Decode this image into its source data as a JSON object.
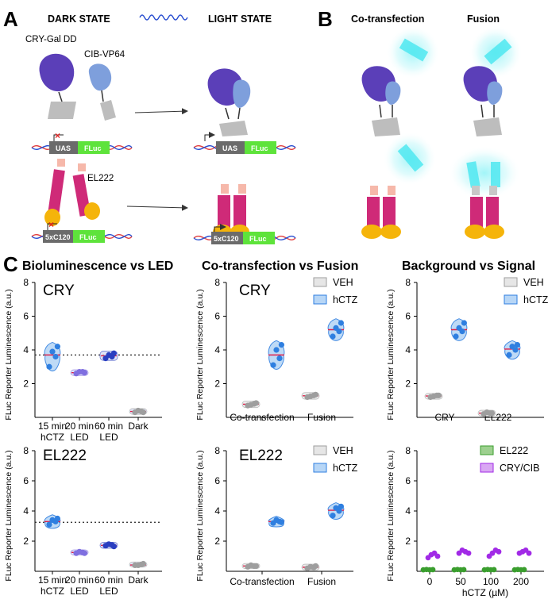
{
  "panels": {
    "a": "A",
    "b": "B",
    "c": "C"
  },
  "panel_a": {
    "dark_state": "DARK STATE",
    "light_state": "LIGHT STATE",
    "cry_label": "CRY-Gal DD",
    "cib_label": "CIB-VP64",
    "el222_label": "EL222",
    "uas": "UAS",
    "fluc": "FLuc",
    "c120": "5xC120"
  },
  "panel_b": {
    "cotransfection": "Co-transfection",
    "fusion": "Fusion"
  },
  "panel_c": {
    "col1_title": "Bioluminescence vs LED",
    "col2_title": "Co-transfection  vs Fusion",
    "col3_title": "Background vs Signal"
  },
  "colors": {
    "cry_dark": "#5b3fb8",
    "cib": "#7e9fdc",
    "el222": "#cf2a78",
    "el222_head": "#f6b8aa",
    "yellow": "#f5b40a",
    "gray": "#bdbdbd",
    "uas_box": "#6b6b6b",
    "fluc_box": "#5ee33b",
    "light": "#4fe8f0",
    "veh": "#9e9e9e",
    "hctz": "#2f7fe0",
    "median": "#e0204a",
    "el222_green": "#3a9e2e",
    "cry_purple": "#a12ae6"
  },
  "chart_data": [
    {
      "type": "violin-dot",
      "title": "CRY",
      "ylabel": "FLuc Reporter Luminescence (a.u.)",
      "ylim": [
        0,
        8
      ],
      "yticks": [
        2,
        4,
        6,
        8
      ],
      "categories": [
        [
          "15 min",
          "hCTZ"
        ],
        [
          "20 min",
          "LED"
        ],
        [
          "60 min",
          "LED"
        ],
        [
          "Dark",
          ""
        ]
      ],
      "groups": [
        {
          "points": [
            3.0,
            3.6,
            3.9,
            4.2
          ],
          "median": 3.7,
          "violin": true,
          "color": "#2f7fe0"
        },
        {
          "points": [
            2.6,
            2.7,
            2.7,
            2.65
          ],
          "median": 2.65,
          "violin": false,
          "color": "#7f6fe0"
        },
        {
          "points": [
            3.5,
            3.6,
            3.7,
            3.8
          ],
          "median": 3.65,
          "violin": false,
          "color": "#2a3fc0"
        },
        {
          "points": [
            0.3,
            0.35,
            0.4,
            0.3
          ],
          "median": 0.35,
          "violin": false,
          "color": "#9e9e9e"
        }
      ],
      "reference_line": 3.7
    },
    {
      "type": "violin-dot",
      "title": "EL222",
      "ylabel": "FLuc Reporter Luminescence (a.u.)",
      "ylim": [
        0,
        8
      ],
      "yticks": [
        2,
        4,
        6,
        8
      ],
      "categories": [
        [
          "15 min",
          "hCTZ"
        ],
        [
          "20 min",
          "LED"
        ],
        [
          "60 min",
          "LED"
        ],
        [
          "Dark",
          ""
        ]
      ],
      "groups": [
        {
          "points": [
            3.1,
            3.3,
            3.4,
            3.5
          ],
          "median": 3.3,
          "violin": true,
          "color": "#2f7fe0"
        },
        {
          "points": [
            1.2,
            1.25,
            1.3,
            1.2
          ],
          "median": 1.25,
          "violin": false,
          "color": "#7f6fe0"
        },
        {
          "points": [
            1.7,
            1.75,
            1.8,
            1.65
          ],
          "median": 1.72,
          "violin": false,
          "color": "#2a3fc0"
        },
        {
          "points": [
            0.4,
            0.45,
            0.4,
            0.5
          ],
          "median": 0.42,
          "violin": false,
          "color": "#9e9e9e"
        }
      ],
      "reference_line": 3.25
    },
    {
      "type": "violin-dot",
      "title": "CRY",
      "ylabel": "FLuc Reporter Luminescence (a.u.)",
      "ylim": [
        0,
        8
      ],
      "yticks": [
        2,
        4,
        6,
        8
      ],
      "legend": [
        "VEH",
        "hCTZ"
      ],
      "categories": [
        "Co-transfection",
        "Fusion"
      ],
      "groups": [
        {
          "series": "VEH",
          "cat": 0,
          "points": [
            0.7,
            0.8,
            0.75,
            0.85
          ],
          "median": 0.78
        },
        {
          "series": "hCTZ",
          "cat": 0,
          "points": [
            3.1,
            3.5,
            4.0,
            4.3
          ],
          "median": 3.7
        },
        {
          "series": "VEH",
          "cat": 1,
          "points": [
            1.2,
            1.3,
            1.25,
            1.35
          ],
          "median": 1.28
        },
        {
          "series": "hCTZ",
          "cat": 1,
          "points": [
            4.8,
            5.1,
            5.3,
            5.6
          ],
          "median": 5.2
        }
      ]
    },
    {
      "type": "violin-dot",
      "title": "EL222",
      "ylabel": "FLuc Reporter Luminescence (a.u.)",
      "ylim": [
        0,
        8
      ],
      "yticks": [
        2,
        4,
        6,
        8
      ],
      "legend": [
        "VEH",
        "hCTZ"
      ],
      "categories": [
        "Co-transfection",
        "Fusion"
      ],
      "groups": [
        {
          "series": "VEH",
          "cat": 0,
          "points": [
            0.3,
            0.35,
            0.4,
            0.35
          ],
          "median": 0.35
        },
        {
          "series": "hCTZ",
          "cat": 0,
          "points": [
            3.2,
            3.3,
            3.4,
            3.25
          ],
          "median": 3.3
        },
        {
          "series": "VEH",
          "cat": 1,
          "points": [
            0.2,
            0.25,
            0.3,
            0.35
          ],
          "median": 0.27
        },
        {
          "series": "hCTZ",
          "cat": 1,
          "points": [
            3.7,
            4.0,
            4.2,
            4.3
          ],
          "median": 4.05
        }
      ]
    },
    {
      "type": "violin-dot",
      "title": "",
      "ylabel": "FLuc Reporter Luminescence (a.u.)",
      "ylim": [
        0,
        8
      ],
      "yticks": [
        2,
        4,
        6,
        8
      ],
      "legend": [
        "VEH",
        "hCTZ"
      ],
      "categories": [
        "CRY",
        "EL222"
      ],
      "groups": [
        {
          "series": "VEH",
          "cat": 0,
          "points": [
            1.2,
            1.3,
            1.25,
            1.3
          ],
          "median": 1.27
        },
        {
          "series": "hCTZ",
          "cat": 0,
          "points": [
            4.8,
            5.1,
            5.3,
            5.6
          ],
          "median": 5.2
        },
        {
          "series": "VEH",
          "cat": 1,
          "points": [
            0.2,
            0.25,
            0.3,
            0.25
          ],
          "median": 0.25
        },
        {
          "series": "hCTZ",
          "cat": 1,
          "points": [
            3.7,
            4.0,
            4.2,
            4.3
          ],
          "median": 4.05
        }
      ]
    },
    {
      "type": "scatter",
      "title": "",
      "ylabel": "FLuc Reporter Luminescence (a.u.)",
      "xlabel": "hCTZ (µM)",
      "ylim": [
        0,
        8
      ],
      "yticks": [
        2,
        4,
        6,
        8
      ],
      "categories": [
        "0",
        "50",
        "100",
        "200"
      ],
      "legend": [
        "EL222",
        "CRY/CIB"
      ],
      "series": [
        {
          "name": "EL222",
          "values": [
            [
              0.1,
              0.12,
              0.1,
              0.11
            ],
            [
              0.1,
              0.12,
              0.1,
              0.11
            ],
            [
              0.1,
              0.12,
              0.1,
              0.11
            ],
            [
              0.1,
              0.12,
              0.1,
              0.11
            ]
          ]
        },
        {
          "name": "CRY/CIB",
          "values": [
            [
              0.9,
              1.1,
              1.2,
              1.0
            ],
            [
              1.2,
              1.4,
              1.3,
              1.2
            ],
            [
              1.0,
              1.2,
              1.4,
              1.3
            ],
            [
              1.2,
              1.3,
              1.4,
              1.2
            ]
          ]
        }
      ]
    }
  ]
}
